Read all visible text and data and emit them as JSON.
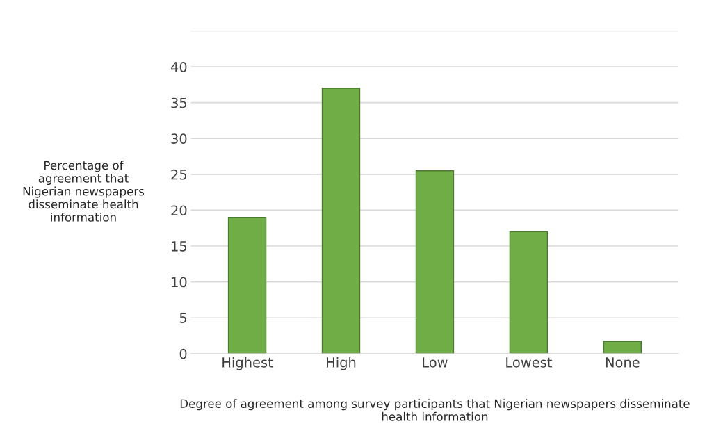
{
  "chart_data": {
    "type": "bar",
    "categories": [
      "Highest",
      "High",
      "Low",
      "Lowest",
      "None"
    ],
    "values": [
      19,
      37,
      25.5,
      17,
      1.7
    ],
    "color": "#70ad47",
    "ylim": [
      0,
      45
    ],
    "yticks": [
      0,
      5,
      10,
      15,
      20,
      25,
      30,
      35,
      40,
      {
        "value": 45,
        "label": null
      }
    ],
    "grid": "y",
    "ylabel": "Percentage of\nagreement that\nNigerian newspapers\ndisseminate health\ninformation",
    "xlabel": "Degree of agreement among survey participants that Nigerian newspapers disseminate\nhealth information"
  }
}
